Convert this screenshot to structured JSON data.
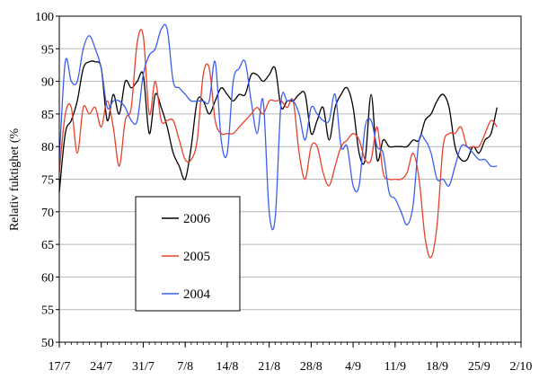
{
  "chart_data": {
    "type": "line",
    "title": "",
    "ylabel": "Relativ fuktighet (%",
    "xlabel": "",
    "ylim": [
      50,
      100
    ],
    "yticks": [
      50,
      55,
      60,
      65,
      70,
      75,
      80,
      85,
      90,
      95,
      100
    ],
    "xlim": [
      "17/7",
      "2/10"
    ],
    "xticks": [
      "17/7",
      "24/7",
      "31/7",
      "7/8",
      "14/8",
      "21/8",
      "28/8",
      "4/9",
      "11/9",
      "18/9",
      "25/9",
      "2/10"
    ],
    "grid": true,
    "legend_position": "bottom-left inside",
    "series": [
      {
        "name": "2006",
        "color": "#000000",
        "x": [
          "17/7",
          "18/7",
          "19/7",
          "20/7",
          "21/7",
          "22/7",
          "23/7",
          "24/7",
          "25/7",
          "26/7",
          "27/7",
          "28/7",
          "29/7",
          "30/7",
          "31/7",
          "1/8",
          "2/8",
          "3/8",
          "4/8",
          "5/8",
          "6/8",
          "7/8",
          "8/8",
          "9/8",
          "10/8",
          "11/8",
          "12/8",
          "13/8",
          "14/8",
          "15/8",
          "16/8",
          "17/8",
          "18/8",
          "19/8",
          "20/8",
          "21/8",
          "22/8",
          "23/8",
          "24/8",
          "25/8",
          "26/8",
          "27/8",
          "28/8",
          "29/8",
          "30/8",
          "31/8",
          "1/9",
          "2/9",
          "3/9",
          "4/9",
          "5/9",
          "6/9",
          "7/9",
          "8/9",
          "9/9",
          "10/9",
          "11/9",
          "12/9",
          "13/9",
          "14/9",
          "15/9",
          "16/9",
          "17/9",
          "18/9",
          "19/9",
          "20/9",
          "21/9",
          "22/9",
          "23/9",
          "24/9",
          "25/9",
          "26/9",
          "27/9",
          "28/9"
        ],
        "values": [
          73,
          82,
          84,
          87,
          92,
          93,
          93,
          92,
          84,
          88,
          85,
          90,
          89,
          90,
          91,
          82,
          88,
          86,
          83,
          79,
          77,
          75,
          80,
          87,
          87,
          85,
          87,
          89,
          88,
          87,
          88,
          88,
          91,
          91,
          90,
          91,
          92,
          86,
          87,
          87,
          88,
          88,
          82,
          84,
          86,
          81,
          86,
          88,
          89,
          86,
          79,
          78,
          88,
          78,
          81,
          80,
          80,
          80,
          80,
          81,
          81,
          84,
          85,
          87,
          88,
          86,
          80,
          78,
          78,
          80,
          79,
          81,
          82,
          86
        ]
      },
      {
        "name": "2005",
        "color": "#e8402a",
        "x": [
          "17/7",
          "18/7",
          "19/7",
          "20/7",
          "21/7",
          "22/7",
          "23/7",
          "24/7",
          "25/7",
          "26/7",
          "27/7",
          "28/7",
          "29/7",
          "30/7",
          "31/7",
          "1/8",
          "2/8",
          "3/8",
          "4/8",
          "5/8",
          "6/8",
          "7/8",
          "8/8",
          "9/8",
          "10/8",
          "11/8",
          "12/8",
          "13/8",
          "14/8",
          "15/8",
          "16/8",
          "17/8",
          "18/8",
          "19/8",
          "20/8",
          "21/8",
          "22/8",
          "23/8",
          "24/8",
          "25/8",
          "26/8",
          "27/8",
          "28/8",
          "29/8",
          "30/8",
          "31/8",
          "1/9",
          "2/9",
          "3/9",
          "4/9",
          "5/9",
          "6/9",
          "7/9",
          "8/9",
          "9/9",
          "10/9",
          "11/9",
          "12/9",
          "13/9",
          "14/9",
          "15/9",
          "16/9",
          "17/9",
          "18/9",
          "19/9",
          "20/9",
          "21/9",
          "22/9",
          "23/9",
          "24/9",
          "25/9",
          "26/9",
          "27/9",
          "28/9"
        ],
        "values": [
          76,
          85,
          86,
          79,
          86,
          85,
          86,
          83,
          87,
          83,
          77,
          84,
          86,
          96,
          97,
          85,
          90,
          84,
          84,
          84,
          81,
          78,
          78,
          81,
          91,
          92,
          84,
          82,
          82,
          82,
          83,
          84,
          85,
          86,
          85,
          87,
          87,
          87,
          86,
          87,
          79,
          75,
          80,
          80,
          76,
          74,
          77,
          80,
          81,
          82,
          81,
          78,
          78,
          83,
          76,
          75,
          75,
          75,
          76,
          79,
          75,
          66,
          63,
          68,
          80,
          82,
          82,
          83,
          80,
          80,
          80,
          82,
          84,
          83
        ]
      },
      {
        "name": "2004",
        "color": "#3b5ef0",
        "x": [
          "17/7",
          "18/7",
          "19/7",
          "20/7",
          "21/7",
          "22/7",
          "23/7",
          "24/7",
          "25/7",
          "26/7",
          "27/7",
          "28/7",
          "29/7",
          "30/7",
          "31/7",
          "1/8",
          "2/8",
          "3/8",
          "4/8",
          "5/8",
          "6/8",
          "7/8",
          "8/8",
          "9/8",
          "10/8",
          "11/8",
          "12/8",
          "13/8",
          "14/8",
          "15/8",
          "16/8",
          "17/8",
          "18/8",
          "19/8",
          "20/8",
          "21/8",
          "22/8",
          "23/8",
          "24/8",
          "25/8",
          "26/8",
          "27/8",
          "28/8",
          "29/8",
          "30/8",
          "31/8",
          "1/9",
          "2/9",
          "3/9",
          "4/9",
          "5/9",
          "6/9",
          "7/9",
          "8/9",
          "9/9",
          "10/9",
          "11/9",
          "12/9",
          "13/9",
          "14/9",
          "15/9",
          "16/9",
          "17/9",
          "18/9",
          "19/9",
          "20/9",
          "21/9",
          "22/9",
          "23/9",
          "24/9",
          "25/9",
          "26/9",
          "27/9",
          "28/9"
        ],
        "values": [
          78,
          93,
          90,
          90,
          95,
          97,
          95,
          92,
          86,
          87,
          87,
          86,
          84,
          84,
          91,
          94,
          95,
          98,
          98,
          90,
          89,
          88,
          87,
          87,
          87,
          87,
          93,
          81,
          79,
          90,
          92,
          93,
          87,
          82,
          87,
          70,
          69,
          87,
          87,
          87,
          85,
          81,
          86,
          85,
          84,
          84,
          88,
          80,
          80,
          74,
          74,
          83,
          84,
          80,
          79,
          73,
          72,
          70,
          68,
          71,
          81,
          81,
          79,
          75,
          75,
          74,
          77,
          80,
          80,
          79,
          78,
          78,
          77,
          77
        ]
      }
    ]
  }
}
